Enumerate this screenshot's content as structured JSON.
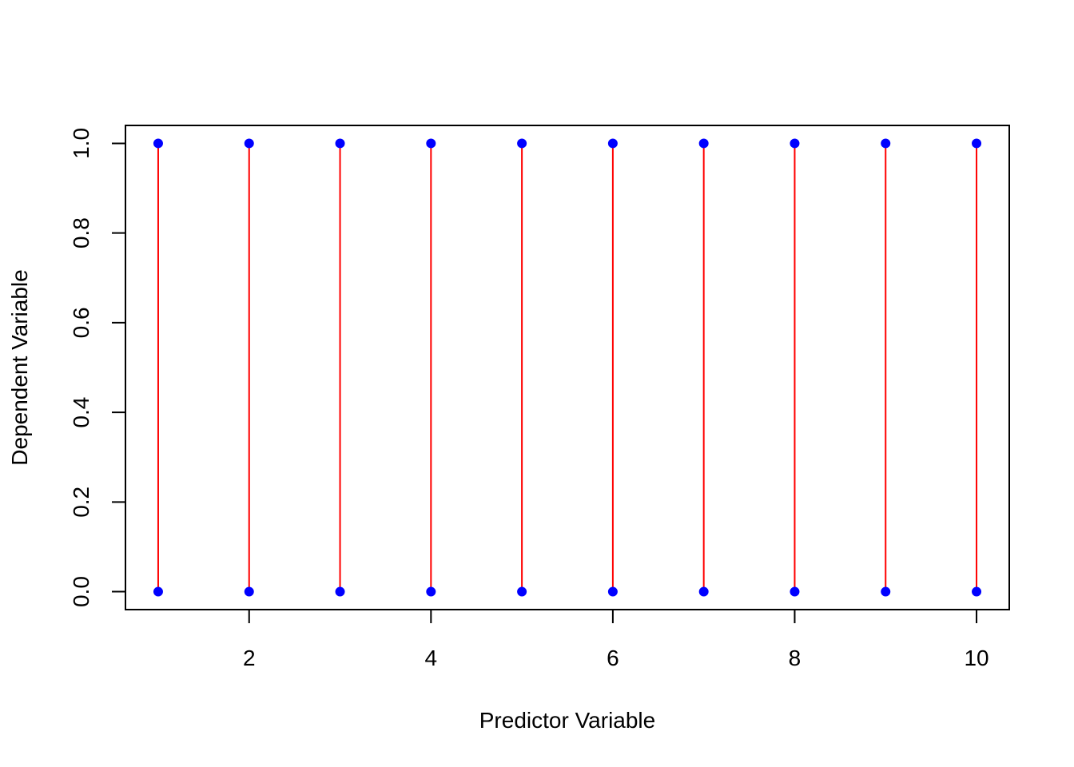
{
  "chart_data": {
    "type": "scatter",
    "title": "",
    "xlabel": "Predictor Variable",
    "ylabel": "Dependent Variable",
    "xlim": [
      0.64,
      10.36
    ],
    "ylim": [
      -0.04,
      1.04
    ],
    "xticks": [
      2,
      4,
      6,
      8,
      10
    ],
    "xtick_labels": [
      "2",
      "4",
      "6",
      "8",
      "10"
    ],
    "yticks": [
      0,
      0.2,
      0.4,
      0.6,
      0.8,
      1
    ],
    "ytick_labels": [
      "0.0",
      "0.2",
      "0.4",
      "0.6",
      "0.8",
      "1.0"
    ],
    "grid": false,
    "legend": "none",
    "series": [
      {
        "marker": "filled-circle",
        "color": "#0000ff",
        "x": [
          1,
          2,
          3,
          4,
          5,
          6,
          7,
          8,
          9,
          10,
          1,
          2,
          3,
          4,
          5,
          6,
          7,
          8,
          9,
          10
        ],
        "y": [
          0,
          0,
          0,
          0,
          0,
          0,
          0,
          0,
          0,
          0,
          1,
          1,
          1,
          1,
          1,
          1,
          1,
          1,
          1,
          1
        ]
      }
    ],
    "segments": {
      "color": "#ff0000",
      "x": [
        1,
        2,
        3,
        4,
        5,
        6,
        7,
        8,
        9,
        10
      ],
      "y_start": [
        0,
        0,
        0,
        0,
        0,
        0,
        0,
        0,
        0,
        0
      ],
      "y_end": [
        1,
        1,
        1,
        1,
        1,
        1,
        1,
        1,
        1,
        1
      ]
    }
  }
}
